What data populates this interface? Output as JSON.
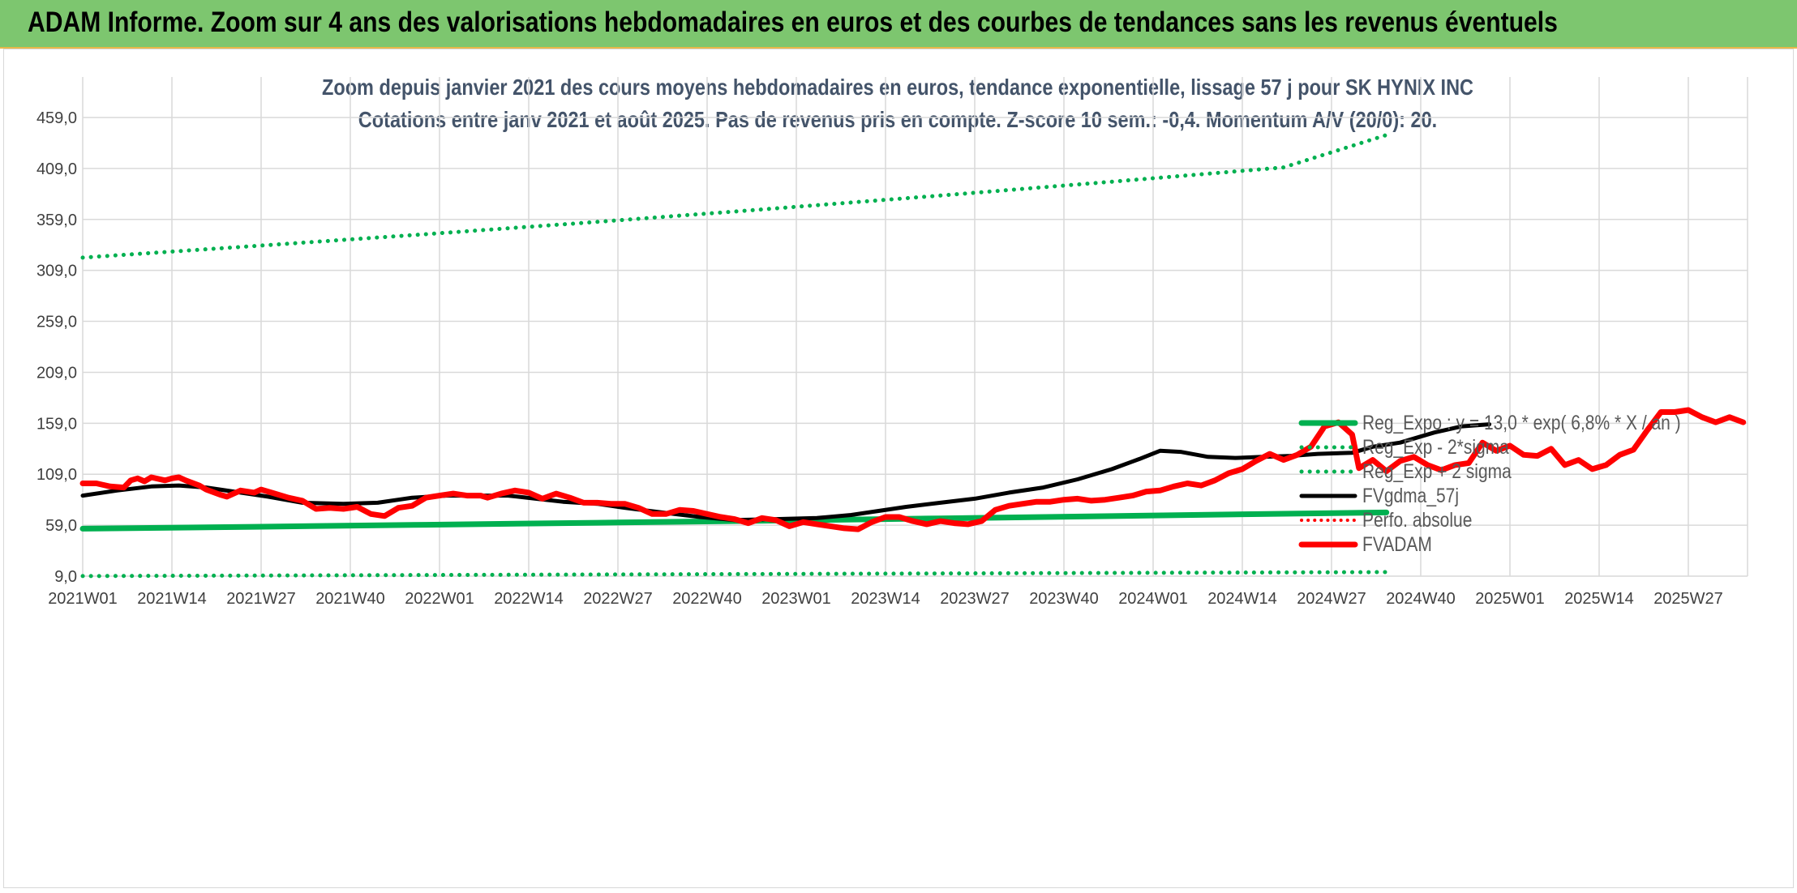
{
  "banner": {
    "title": "ADAM Informe. Zoom sur 4 ans des valorisations hebdomadaires en euros et des courbes de tendances sans les revenus éventuels"
  },
  "chart_data": {
    "type": "line",
    "title_lines": [
      "Zoom depuis janvier 2021 des cours moyens hebdomadaires en euros, tendance exponentielle, lissage 57 j pour SK HYNIX INC",
      "Cotations entre janv 2021 et août 2025. Pas de revenus pris en compte. Z-score 10 sem.: -0,4. Momentum A/V (20/0): 20."
    ],
    "y_ticks": [
      "9,0",
      "59,0",
      "109,0",
      "159,0",
      "209,0",
      "259,0",
      "309,0",
      "359,0",
      "409,0",
      "459,0"
    ],
    "ylim": [
      9,
      459
    ],
    "x_ticks": [
      "2021W01",
      "2021W14",
      "2021W27",
      "2021W40",
      "2022W01",
      "2022W14",
      "2022W27",
      "2022W40",
      "2023W01",
      "2023W14",
      "2023W27",
      "2023W40",
      "2024W01",
      "2024W14",
      "2024W27",
      "2024W40",
      "2025W01",
      "2025W14",
      "2025W27"
    ],
    "x_tick_step_weeks": 13,
    "grid": true,
    "legend_position": "bottom-right",
    "series": [
      {
        "name": "Reg_Expo : y = 13,0 * exp( 6,8% * X / an )",
        "color": "#00b050",
        "style": "solid",
        "points": [
          [
            0,
            55.6
          ],
          [
            25,
            57.4
          ],
          [
            50,
            59.4
          ],
          [
            75,
            61.4
          ],
          [
            100,
            63.5
          ],
          [
            125,
            65.7
          ],
          [
            150,
            67.9
          ],
          [
            175,
            70.2
          ],
          [
            190,
            71.5
          ]
        ]
      },
      {
        "name": "Reg_Exp - 2*sigma",
        "color": "#00b050",
        "style": "dotted",
        "points": [
          [
            0,
            9.1
          ],
          [
            190,
            13.0
          ]
        ]
      },
      {
        "name": "Reg_Exp + 2 sigma",
        "color": "#00b050",
        "style": "dotted",
        "points": [
          [
            0,
            321.5
          ],
          [
            25,
            332.9
          ],
          [
            50,
            344.5
          ],
          [
            75,
            356.6
          ],
          [
            100,
            369.3
          ],
          [
            125,
            382.4
          ],
          [
            150,
            396.0
          ],
          [
            175,
            410.0
          ],
          [
            190,
            441.8
          ]
        ]
      },
      {
        "name": "FVgdma_57j",
        "color": "#000000",
        "style": "solid",
        "points": [
          [
            0,
            88
          ],
          [
            5,
            93
          ],
          [
            10,
            97
          ],
          [
            14,
            98
          ],
          [
            18,
            96
          ],
          [
            22,
            92
          ],
          [
            27,
            87
          ],
          [
            32,
            81
          ],
          [
            38,
            80
          ],
          [
            43,
            81
          ],
          [
            48,
            86
          ],
          [
            53,
            88
          ],
          [
            58,
            88
          ],
          [
            62,
            88
          ],
          [
            66,
            85
          ],
          [
            70,
            82
          ],
          [
            75,
            80
          ],
          [
            79,
            76
          ],
          [
            85,
            71
          ],
          [
            90,
            67
          ],
          [
            95,
            64
          ],
          [
            101,
            65
          ],
          [
            107,
            66
          ],
          [
            112,
            69
          ],
          [
            116,
            73
          ],
          [
            120,
            77
          ],
          [
            125,
            81
          ],
          [
            130,
            85
          ],
          [
            135,
            91
          ],
          [
            140,
            96
          ],
          [
            145,
            104
          ],
          [
            150,
            114
          ],
          [
            154,
            124
          ],
          [
            157,
            132
          ],
          [
            160,
            131
          ],
          [
            164,
            126
          ],
          [
            168,
            125
          ],
          [
            172,
            126
          ],
          [
            176,
            127
          ],
          [
            180,
            129
          ],
          [
            185,
            130
          ],
          [
            188,
            136
          ],
          [
            192,
            140
          ],
          [
            197,
            150
          ],
          [
            201,
            156
          ],
          [
            205,
            158
          ]
        ]
      },
      {
        "name": "Perfo. absolue",
        "color": "#ff0000",
        "style": "dotted",
        "points": []
      },
      {
        "name": "FVADAM",
        "color": "#ff0000",
        "style": "solid",
        "points": [
          [
            0,
            100
          ],
          [
            2,
            100
          ],
          [
            4,
            97
          ],
          [
            6,
            96
          ],
          [
            7,
            103
          ],
          [
            8,
            105
          ],
          [
            9,
            102
          ],
          [
            10,
            106
          ],
          [
            12,
            103
          ],
          [
            13,
            105
          ],
          [
            14,
            106
          ],
          [
            15,
            103
          ],
          [
            17,
            98
          ],
          [
            18,
            94
          ],
          [
            20,
            89
          ],
          [
            21,
            87
          ],
          [
            23,
            93
          ],
          [
            25,
            91
          ],
          [
            26,
            94
          ],
          [
            28,
            90
          ],
          [
            30,
            86
          ],
          [
            32,
            83
          ],
          [
            34,
            75
          ],
          [
            36,
            76
          ],
          [
            38,
            75
          ],
          [
            40,
            77
          ],
          [
            42,
            70
          ],
          [
            44,
            68
          ],
          [
            46,
            76
          ],
          [
            48,
            78
          ],
          [
            50,
            86
          ],
          [
            52,
            88
          ],
          [
            54,
            90
          ],
          [
            56,
            88
          ],
          [
            58,
            88
          ],
          [
            59,
            86
          ],
          [
            61,
            90
          ],
          [
            63,
            93
          ],
          [
            65,
            91
          ],
          [
            67,
            85
          ],
          [
            69,
            90
          ],
          [
            71,
            86
          ],
          [
            73,
            81
          ],
          [
            75,
            81
          ],
          [
            77,
            80
          ],
          [
            79,
            80
          ],
          [
            81,
            76
          ],
          [
            83,
            70
          ],
          [
            85,
            70
          ],
          [
            87,
            74
          ],
          [
            89,
            73
          ],
          [
            91,
            70
          ],
          [
            93,
            67
          ],
          [
            95,
            65
          ],
          [
            97,
            61
          ],
          [
            99,
            66
          ],
          [
            101,
            64
          ],
          [
            103,
            58
          ],
          [
            105,
            62
          ],
          [
            107,
            60
          ],
          [
            109,
            58
          ],
          [
            111,
            56
          ],
          [
            113,
            55
          ],
          [
            115,
            62
          ],
          [
            117,
            67
          ],
          [
            119,
            67
          ],
          [
            121,
            63
          ],
          [
            123,
            60
          ],
          [
            125,
            63
          ],
          [
            127,
            61
          ],
          [
            129,
            60
          ],
          [
            131,
            63
          ],
          [
            133,
            74
          ],
          [
            135,
            78
          ],
          [
            137,
            80
          ],
          [
            139,
            82
          ],
          [
            141,
            82
          ],
          [
            143,
            84
          ],
          [
            145,
            85
          ],
          [
            147,
            83
          ],
          [
            149,
            84
          ],
          [
            151,
            86
          ],
          [
            153,
            88
          ],
          [
            155,
            92
          ],
          [
            157,
            93
          ],
          [
            159,
            97
          ],
          [
            161,
            100
          ],
          [
            163,
            98
          ],
          [
            165,
            103
          ],
          [
            167,
            110
          ],
          [
            169,
            114
          ],
          [
            171,
            122
          ],
          [
            173,
            129
          ],
          [
            175,
            123
          ],
          [
            177,
            128
          ],
          [
            179,
            136
          ],
          [
            181,
            156
          ],
          [
            183,
            160
          ],
          [
            185,
            148
          ],
          [
            186,
            115
          ],
          [
            188,
            123
          ],
          [
            190,
            112
          ],
          [
            192,
            122
          ],
          [
            194,
            126
          ],
          [
            196,
            118
          ],
          [
            198,
            113
          ],
          [
            200,
            118
          ],
          [
            202,
            120
          ],
          [
            204,
            140
          ],
          [
            206,
            132
          ],
          [
            208,
            137
          ],
          [
            210,
            128
          ],
          [
            212,
            127
          ],
          [
            214,
            134
          ],
          [
            216,
            118
          ],
          [
            218,
            123
          ],
          [
            220,
            114
          ],
          [
            222,
            118
          ],
          [
            224,
            128
          ],
          [
            226,
            133
          ],
          [
            228,
            152
          ],
          [
            230,
            170
          ],
          [
            232,
            170
          ],
          [
            234,
            172
          ],
          [
            236,
            165
          ],
          [
            238,
            160
          ],
          [
            240,
            165
          ],
          [
            242,
            160
          ]
        ]
      }
    ]
  }
}
